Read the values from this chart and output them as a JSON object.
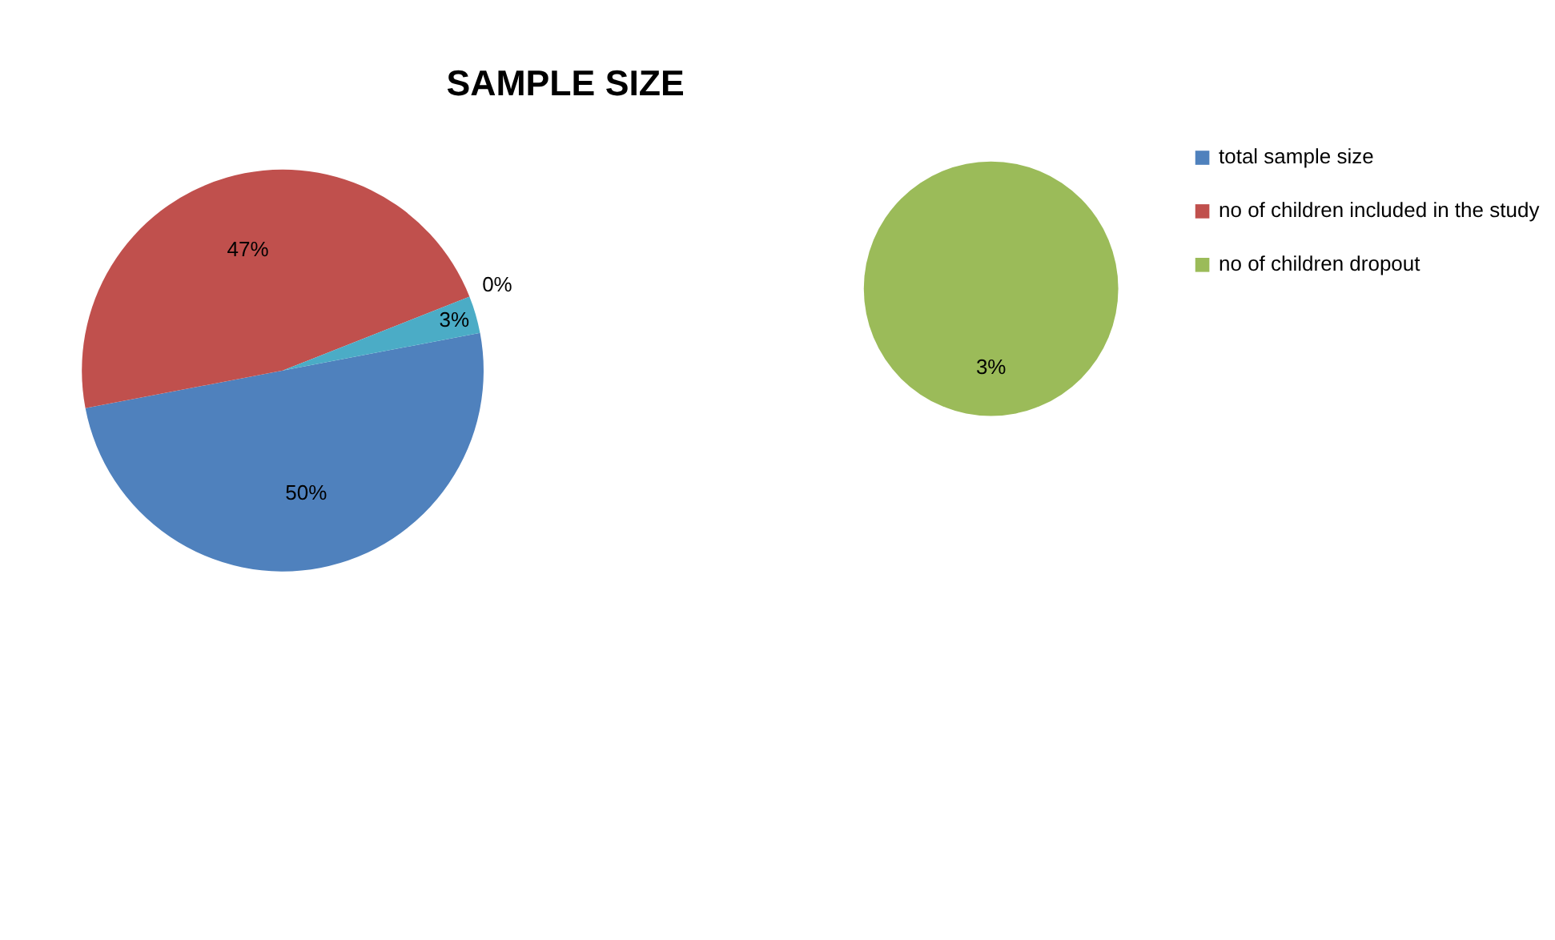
{
  "chart_data": [
    {
      "type": "pie",
      "title": "SAMPLE SIZE",
      "categories": [
        "total sample size",
        "no of children included in the study",
        null,
        null
      ],
      "values": [
        50,
        47,
        0,
        3
      ],
      "colors": [
        "#4f81bd",
        "#c0504d",
        "#4bacc6",
        "#4bacc6"
      ],
      "value_labels": [
        "50%",
        "47%",
        "0%",
        "3%"
      ],
      "legend": "right"
    },
    {
      "type": "pie",
      "categories": [
        "no of children dropout"
      ],
      "values": [
        3
      ],
      "colors": [
        "#9bbb59"
      ],
      "value_labels": [
        "3%"
      ],
      "legend": "right"
    }
  ]
}
